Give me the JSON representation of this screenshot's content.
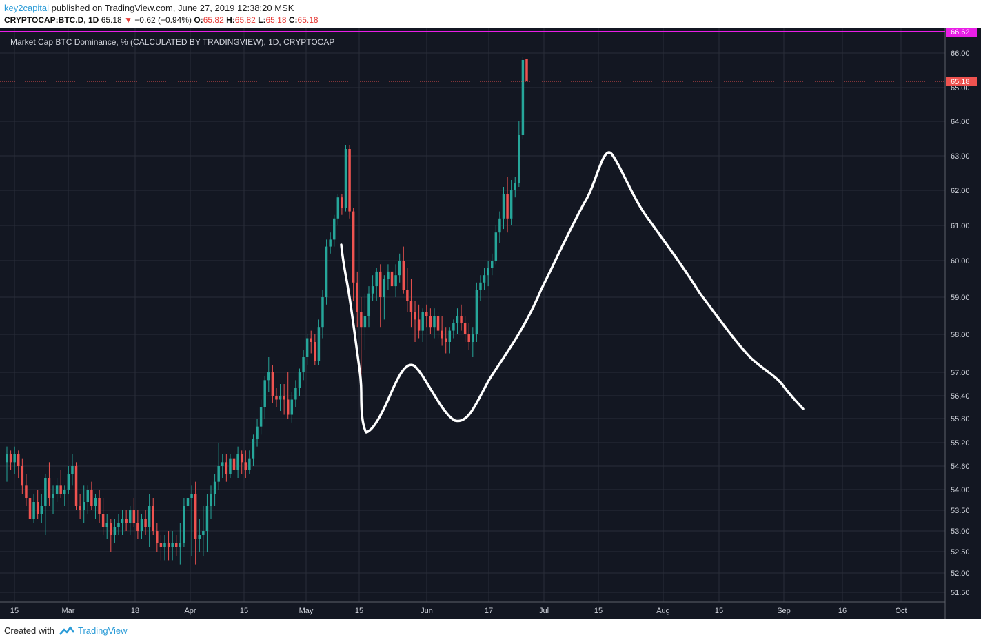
{
  "header": {
    "author": "key2capital",
    "published_text": "published on TradingView.com, June 27, 2019 12:38:20 MSK",
    "symbol": "CRYPTOCAP:BTC.D, 1D",
    "last": "65.18",
    "change": "−0.62 (−0.94%)",
    "o_label": "O:",
    "o_value": "65.82",
    "h_label": "H:",
    "h_value": "65.82",
    "l_label": "L:",
    "l_value": "65.18",
    "c_label": "C:",
    "c_value": "65.18"
  },
  "footer": {
    "created_with": "Created with",
    "brand": "TradingView"
  },
  "colors": {
    "up": "#26a69a",
    "down": "#ef5350",
    "background": "#131722",
    "grid": "#2a2e39",
    "level_line": "#e91ee6",
    "price_line": "#ef5350",
    "drawing": "#ffffff"
  },
  "chart_data": {
    "type": "candlestick",
    "title": "Market Cap BTC Dominance, % (CALCULATED BY TRADINGVIEW), 1D, CRYPTOCAP",
    "y_ticks": [
      "66.00",
      "65.00",
      "64.00",
      "63.00",
      "62.00",
      "61.00",
      "60.00",
      "59.00",
      "58.00",
      "57.00",
      "56.40",
      "55.80",
      "55.20",
      "54.60",
      "54.00",
      "53.50",
      "53.00",
      "52.50",
      "52.00",
      "51.50"
    ],
    "x_ticks": [
      "15",
      "Mar",
      "18",
      "Apr",
      "15",
      "May",
      "15",
      "Jun",
      "17",
      "Jul",
      "15",
      "Aug",
      "15",
      "Sep",
      "16",
      "Oct"
    ],
    "horizontal_level": {
      "value": 66.62,
      "label": "66.62"
    },
    "last_price": {
      "value": 65.18,
      "label": "65.18"
    },
    "candles": [
      {
        "o": 54.7,
        "h": 55.1,
        "l": 54.2,
        "c": 54.9
      },
      {
        "o": 54.9,
        "h": 55.0,
        "l": 54.5,
        "c": 54.7
      },
      {
        "o": 54.7,
        "h": 55.1,
        "l": 54.4,
        "c": 54.9
      },
      {
        "o": 54.9,
        "h": 55.0,
        "l": 54.3,
        "c": 54.6
      },
      {
        "o": 54.6,
        "h": 54.8,
        "l": 53.9,
        "c": 54.1
      },
      {
        "o": 54.1,
        "h": 54.4,
        "l": 53.6,
        "c": 53.8
      },
      {
        "o": 53.8,
        "h": 54.0,
        "l": 53.1,
        "c": 53.3
      },
      {
        "o": 53.3,
        "h": 53.9,
        "l": 53.2,
        "c": 53.7
      },
      {
        "o": 53.7,
        "h": 54.0,
        "l": 53.3,
        "c": 53.4
      },
      {
        "o": 53.4,
        "h": 53.9,
        "l": 53.2,
        "c": 53.6
      },
      {
        "o": 53.6,
        "h": 54.4,
        "l": 52.9,
        "c": 54.3
      },
      {
        "o": 54.3,
        "h": 54.7,
        "l": 53.6,
        "c": 53.8
      },
      {
        "o": 53.8,
        "h": 54.1,
        "l": 53.4,
        "c": 53.9
      },
      {
        "o": 53.9,
        "h": 54.3,
        "l": 53.7,
        "c": 54.1
      },
      {
        "o": 54.1,
        "h": 54.5,
        "l": 53.8,
        "c": 53.9
      },
      {
        "o": 53.9,
        "h": 54.1,
        "l": 53.6,
        "c": 54.0
      },
      {
        "o": 54.0,
        "h": 54.6,
        "l": 53.9,
        "c": 54.4
      },
      {
        "o": 54.4,
        "h": 54.9,
        "l": 54.1,
        "c": 54.6
      },
      {
        "o": 54.6,
        "h": 54.7,
        "l": 53.5,
        "c": 53.6
      },
      {
        "o": 53.6,
        "h": 53.9,
        "l": 53.3,
        "c": 53.5
      },
      {
        "o": 53.5,
        "h": 54.1,
        "l": 53.2,
        "c": 53.7
      },
      {
        "o": 53.7,
        "h": 54.1,
        "l": 53.4,
        "c": 54.0
      },
      {
        "o": 54.0,
        "h": 54.2,
        "l": 53.5,
        "c": 53.6
      },
      {
        "o": 53.6,
        "h": 53.9,
        "l": 53.3,
        "c": 53.8
      },
      {
        "o": 53.8,
        "h": 54.0,
        "l": 53.2,
        "c": 53.4
      },
      {
        "o": 53.4,
        "h": 53.8,
        "l": 52.9,
        "c": 53.1
      },
      {
        "o": 53.1,
        "h": 53.4,
        "l": 52.8,
        "c": 53.2
      },
      {
        "o": 53.2,
        "h": 53.3,
        "l": 52.5,
        "c": 52.9
      },
      {
        "o": 52.9,
        "h": 53.3,
        "l": 52.7,
        "c": 53.1
      },
      {
        "o": 53.1,
        "h": 53.4,
        "l": 52.9,
        "c": 53.2
      },
      {
        "o": 53.2,
        "h": 53.5,
        "l": 52.9,
        "c": 53.3
      },
      {
        "o": 53.3,
        "h": 53.5,
        "l": 53.0,
        "c": 53.2
      },
      {
        "o": 53.2,
        "h": 53.6,
        "l": 52.9,
        "c": 53.5
      },
      {
        "o": 53.5,
        "h": 53.8,
        "l": 53.1,
        "c": 53.2
      },
      {
        "o": 53.2,
        "h": 53.5,
        "l": 52.8,
        "c": 53.0
      },
      {
        "o": 53.0,
        "h": 53.4,
        "l": 52.8,
        "c": 53.3
      },
      {
        "o": 53.3,
        "h": 53.5,
        "l": 52.9,
        "c": 53.1
      },
      {
        "o": 53.1,
        "h": 53.9,
        "l": 52.6,
        "c": 53.6
      },
      {
        "o": 53.6,
        "h": 53.8,
        "l": 52.9,
        "c": 53.0
      },
      {
        "o": 53.0,
        "h": 53.2,
        "l": 52.5,
        "c": 52.7
      },
      {
        "o": 52.7,
        "h": 52.9,
        "l": 52.3,
        "c": 52.6
      },
      {
        "o": 52.6,
        "h": 52.9,
        "l": 52.3,
        "c": 52.7
      },
      {
        "o": 52.7,
        "h": 53.0,
        "l": 52.3,
        "c": 52.6
      },
      {
        "o": 52.6,
        "h": 53.0,
        "l": 52.3,
        "c": 52.7
      },
      {
        "o": 52.7,
        "h": 52.9,
        "l": 52.4,
        "c": 52.6
      },
      {
        "o": 52.6,
        "h": 53.2,
        "l": 52.2,
        "c": 52.7
      },
      {
        "o": 52.7,
        "h": 53.8,
        "l": 52.6,
        "c": 53.6
      },
      {
        "o": 53.6,
        "h": 54.4,
        "l": 52.1,
        "c": 53.8
      },
      {
        "o": 53.8,
        "h": 54.1,
        "l": 52.4,
        "c": 53.9
      },
      {
        "o": 53.9,
        "h": 54.2,
        "l": 52.2,
        "c": 52.8
      },
      {
        "o": 52.8,
        "h": 53.3,
        "l": 52.5,
        "c": 52.9
      },
      {
        "o": 52.9,
        "h": 53.6,
        "l": 52.4,
        "c": 53.0
      },
      {
        "o": 53.0,
        "h": 53.9,
        "l": 52.5,
        "c": 53.6
      },
      {
        "o": 53.6,
        "h": 54.1,
        "l": 53.3,
        "c": 53.9
      },
      {
        "o": 53.9,
        "h": 54.4,
        "l": 53.6,
        "c": 54.2
      },
      {
        "o": 54.2,
        "h": 55.2,
        "l": 54.0,
        "c": 54.6
      },
      {
        "o": 54.6,
        "h": 54.9,
        "l": 54.3,
        "c": 54.7
      },
      {
        "o": 54.7,
        "h": 54.9,
        "l": 54.2,
        "c": 54.4
      },
      {
        "o": 54.4,
        "h": 54.9,
        "l": 54.3,
        "c": 54.8
      },
      {
        "o": 54.8,
        "h": 55.0,
        "l": 54.4,
        "c": 54.5
      },
      {
        "o": 54.5,
        "h": 55.1,
        "l": 54.3,
        "c": 54.9
      },
      {
        "o": 54.9,
        "h": 55.0,
        "l": 54.4,
        "c": 54.7
      },
      {
        "o": 54.7,
        "h": 55.0,
        "l": 54.3,
        "c": 54.5
      },
      {
        "o": 54.5,
        "h": 55.0,
        "l": 54.4,
        "c": 54.8
      },
      {
        "o": 54.8,
        "h": 55.4,
        "l": 54.6,
        "c": 55.3
      },
      {
        "o": 55.3,
        "h": 55.8,
        "l": 55.1,
        "c": 55.6
      },
      {
        "o": 55.6,
        "h": 56.3,
        "l": 55.4,
        "c": 56.1
      },
      {
        "o": 56.1,
        "h": 56.9,
        "l": 55.8,
        "c": 56.8
      },
      {
        "o": 56.8,
        "h": 57.4,
        "l": 56.5,
        "c": 57.0
      },
      {
        "o": 57.0,
        "h": 57.2,
        "l": 56.2,
        "c": 56.4
      },
      {
        "o": 56.4,
        "h": 56.6,
        "l": 56.1,
        "c": 56.3
      },
      {
        "o": 56.3,
        "h": 56.7,
        "l": 56.0,
        "c": 56.4
      },
      {
        "o": 56.4,
        "h": 56.7,
        "l": 55.9,
        "c": 56.3
      },
      {
        "o": 56.3,
        "h": 57.0,
        "l": 55.8,
        "c": 55.9
      },
      {
        "o": 55.9,
        "h": 56.5,
        "l": 55.7,
        "c": 56.3
      },
      {
        "o": 56.3,
        "h": 56.8,
        "l": 56.1,
        "c": 56.6
      },
      {
        "o": 56.6,
        "h": 57.1,
        "l": 56.4,
        "c": 57.0
      },
      {
        "o": 57.0,
        "h": 57.6,
        "l": 56.8,
        "c": 57.4
      },
      {
        "o": 57.4,
        "h": 58.0,
        "l": 57.2,
        "c": 57.9
      },
      {
        "o": 57.9,
        "h": 58.1,
        "l": 57.5,
        "c": 57.8
      },
      {
        "o": 57.8,
        "h": 58.0,
        "l": 57.2,
        "c": 57.3
      },
      {
        "o": 57.3,
        "h": 58.4,
        "l": 57.2,
        "c": 58.2
      },
      {
        "o": 58.2,
        "h": 59.2,
        "l": 57.9,
        "c": 59.0
      },
      {
        "o": 59.0,
        "h": 60.6,
        "l": 58.8,
        "c": 60.4
      },
      {
        "o": 60.4,
        "h": 60.8,
        "l": 60.2,
        "c": 60.6
      },
      {
        "o": 60.6,
        "h": 61.3,
        "l": 60.4,
        "c": 61.2
      },
      {
        "o": 61.2,
        "h": 61.9,
        "l": 61.0,
        "c": 61.8
      },
      {
        "o": 61.8,
        "h": 61.9,
        "l": 61.3,
        "c": 61.5
      },
      {
        "o": 61.5,
        "h": 63.3,
        "l": 61.4,
        "c": 63.2
      },
      {
        "o": 63.2,
        "h": 63.3,
        "l": 61.2,
        "c": 61.4
      },
      {
        "o": 61.4,
        "h": 61.5,
        "l": 58.9,
        "c": 59.4
      },
      {
        "o": 59.4,
        "h": 59.7,
        "l": 58.2,
        "c": 58.6
      },
      {
        "o": 58.6,
        "h": 59.0,
        "l": 56.7,
        "c": 58.2
      },
      {
        "o": 58.2,
        "h": 59.1,
        "l": 57.6,
        "c": 58.5
      },
      {
        "o": 58.5,
        "h": 59.3,
        "l": 58.2,
        "c": 59.1
      },
      {
        "o": 59.1,
        "h": 59.6,
        "l": 58.9,
        "c": 59.3
      },
      {
        "o": 59.3,
        "h": 59.8,
        "l": 58.9,
        "c": 59.7
      },
      {
        "o": 59.7,
        "h": 59.9,
        "l": 58.2,
        "c": 59.0
      },
      {
        "o": 59.0,
        "h": 59.6,
        "l": 58.4,
        "c": 59.5
      },
      {
        "o": 59.5,
        "h": 59.9,
        "l": 59.2,
        "c": 59.7
      },
      {
        "o": 59.7,
        "h": 59.8,
        "l": 59.2,
        "c": 59.3
      },
      {
        "o": 59.3,
        "h": 59.9,
        "l": 59.0,
        "c": 59.6
      },
      {
        "o": 59.6,
        "h": 60.2,
        "l": 59.4,
        "c": 60.0
      },
      {
        "o": 60.0,
        "h": 60.4,
        "l": 59.1,
        "c": 59.2
      },
      {
        "o": 59.2,
        "h": 59.8,
        "l": 58.6,
        "c": 58.9
      },
      {
        "o": 58.9,
        "h": 59.5,
        "l": 58.2,
        "c": 58.6
      },
      {
        "o": 58.6,
        "h": 58.9,
        "l": 57.8,
        "c": 58.4
      },
      {
        "o": 58.4,
        "h": 58.8,
        "l": 57.9,
        "c": 58.1
      },
      {
        "o": 58.1,
        "h": 58.7,
        "l": 57.8,
        "c": 58.6
      },
      {
        "o": 58.6,
        "h": 58.8,
        "l": 58.2,
        "c": 58.5
      },
      {
        "o": 58.5,
        "h": 58.7,
        "l": 58.0,
        "c": 58.2
      },
      {
        "o": 58.2,
        "h": 58.7,
        "l": 57.9,
        "c": 58.5
      },
      {
        "o": 58.5,
        "h": 58.6,
        "l": 57.9,
        "c": 58.1
      },
      {
        "o": 58.1,
        "h": 58.5,
        "l": 57.7,
        "c": 57.9
      },
      {
        "o": 57.9,
        "h": 58.2,
        "l": 57.5,
        "c": 57.8
      },
      {
        "o": 57.8,
        "h": 58.2,
        "l": 57.5,
        "c": 58.1
      },
      {
        "o": 58.1,
        "h": 58.4,
        "l": 57.9,
        "c": 58.3
      },
      {
        "o": 58.3,
        "h": 58.7,
        "l": 58.0,
        "c": 58.5
      },
      {
        "o": 58.5,
        "h": 58.8,
        "l": 58.1,
        "c": 58.3
      },
      {
        "o": 58.3,
        "h": 58.5,
        "l": 57.8,
        "c": 58.0
      },
      {
        "o": 58.0,
        "h": 58.3,
        "l": 57.6,
        "c": 57.8
      },
      {
        "o": 57.8,
        "h": 58.2,
        "l": 57.4,
        "c": 58.0
      },
      {
        "o": 58.0,
        "h": 59.4,
        "l": 57.8,
        "c": 59.2
      },
      {
        "o": 59.2,
        "h": 59.6,
        "l": 58.9,
        "c": 59.4
      },
      {
        "o": 59.4,
        "h": 59.8,
        "l": 59.2,
        "c": 59.6
      },
      {
        "o": 59.6,
        "h": 60.0,
        "l": 59.3,
        "c": 59.8
      },
      {
        "o": 59.8,
        "h": 60.2,
        "l": 59.6,
        "c": 60.0
      },
      {
        "o": 60.0,
        "h": 61.0,
        "l": 59.9,
        "c": 60.8
      },
      {
        "o": 60.8,
        "h": 61.4,
        "l": 60.5,
        "c": 61.2
      },
      {
        "o": 61.2,
        "h": 62.1,
        "l": 60.9,
        "c": 61.9
      },
      {
        "o": 61.9,
        "h": 62.4,
        "l": 60.8,
        "c": 61.2
      },
      {
        "o": 61.2,
        "h": 62.3,
        "l": 61.0,
        "c": 62.0
      },
      {
        "o": 62.0,
        "h": 62.4,
        "l": 61.8,
        "c": 62.2
      },
      {
        "o": 62.2,
        "h": 64.0,
        "l": 62.1,
        "c": 63.6
      },
      {
        "o": 63.6,
        "h": 65.9,
        "l": 63.5,
        "c": 65.8
      },
      {
        "o": 65.82,
        "h": 65.82,
        "l": 65.18,
        "c": 65.18
      }
    ],
    "drawings": [
      {
        "type": "freehand",
        "description": "white hand-drawn projected path"
      }
    ]
  }
}
